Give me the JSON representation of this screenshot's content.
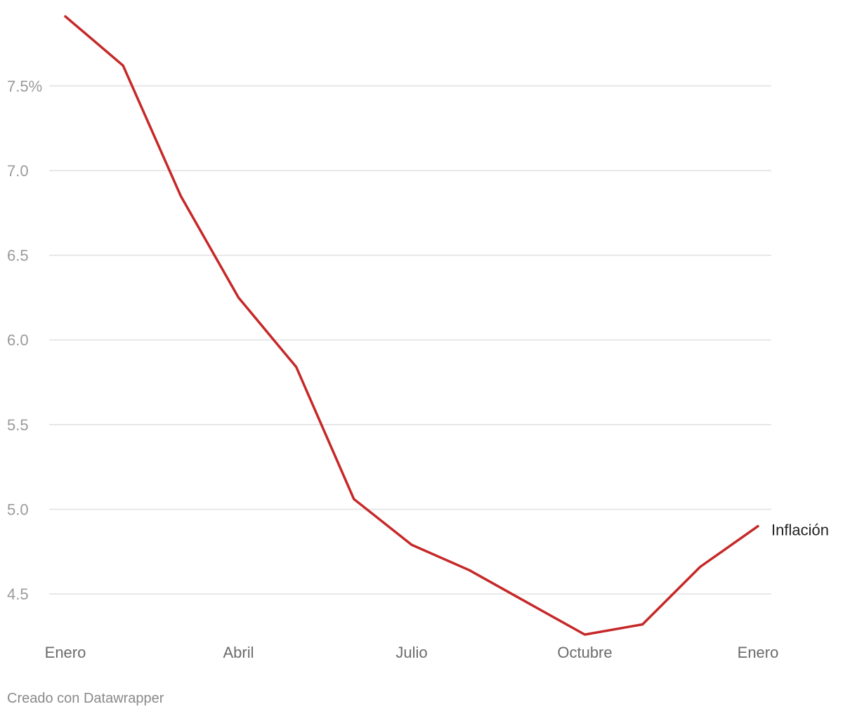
{
  "chart_data": {
    "type": "line",
    "title": "",
    "xlabel": "",
    "ylabel": "",
    "x": [
      1,
      2,
      3,
      4,
      5,
      6,
      7,
      8,
      9,
      10,
      11,
      12,
      13
    ],
    "x_ticks": [
      {
        "x": 1,
        "label": "Enero"
      },
      {
        "x": 4,
        "label": "Abril"
      },
      {
        "x": 7,
        "label": "Julio"
      },
      {
        "x": 10,
        "label": "Octubre"
      },
      {
        "x": 13,
        "label": "Enero"
      }
    ],
    "y_ticks": [
      {
        "value": 7.5,
        "label": "7.5%"
      },
      {
        "value": 7.0,
        "label": "7.0"
      },
      {
        "value": 6.5,
        "label": "6.5"
      },
      {
        "value": 6.0,
        "label": "6.0"
      },
      {
        "value": 5.5,
        "label": "5.5"
      },
      {
        "value": 5.0,
        "label": "5.0"
      },
      {
        "value": 4.5,
        "label": "4.5"
      }
    ],
    "ylim": [
      4.26,
      7.92
    ],
    "xlim": [
      1,
      13
    ],
    "grid": true,
    "series": [
      {
        "name": "Inflación",
        "color": "#c62828",
        "values": [
          7.91,
          7.62,
          6.85,
          6.25,
          5.84,
          5.06,
          4.79,
          4.64,
          4.45,
          4.26,
          4.32,
          4.66,
          4.9
        ]
      }
    ]
  },
  "credit": "Creado con Datawrapper"
}
